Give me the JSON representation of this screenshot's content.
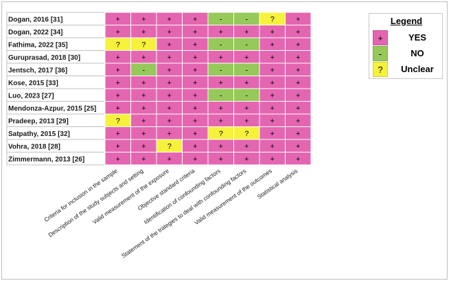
{
  "chart_data": {
    "type": "heatmap",
    "rows": [
      "Dogan, 2016 [31]",
      "Dogan, 2022 [34]",
      "Fathima, 2022 [35]",
      "Guruprasad, 2018 [30]",
      "Jentsch, 2017 [36]",
      "Kose, 2015 [33]",
      "Luo, 2023 [27]",
      "Mendonza-Azpur, 2015 [25]",
      "Pradeep, 2013 [29]",
      "Satpathy, 2015 [32]",
      "Vohra, 2018 [28]",
      "Zimmermann, 2013 [26]"
    ],
    "columns": [
      "Criteria for inclusion in the sample",
      "Description of the study subjects and setting",
      "Valid measurement of the exposure",
      "Objective standard criteria",
      "Identification of confounding factors",
      "Statement of the trategies to deal with confounding factors",
      "Valid measurement of the outcomes",
      "Statistical analysis"
    ],
    "values": [
      [
        "+",
        "+",
        "+",
        "+",
        "-",
        "-",
        "?",
        "+"
      ],
      [
        "+",
        "+",
        "+",
        "+",
        "+",
        "+",
        "+",
        "+"
      ],
      [
        "?",
        "?",
        "+",
        "+",
        "-",
        "-",
        "+",
        "+"
      ],
      [
        "+",
        "+",
        "+",
        "+",
        "+",
        "+",
        "+",
        "+"
      ],
      [
        "+",
        "-",
        "+",
        "+",
        "-",
        "-",
        "+",
        "+"
      ],
      [
        "+",
        "+",
        "+",
        "+",
        "+",
        "+",
        "+",
        "+"
      ],
      [
        "+",
        "+",
        "+",
        "+",
        "-",
        "-",
        "+",
        "+"
      ],
      [
        "+",
        "+",
        "+",
        "+",
        "+",
        "+",
        "+",
        "+"
      ],
      [
        "?",
        "+",
        "+",
        "+",
        "+",
        "+",
        "+",
        "+"
      ],
      [
        "+",
        "+",
        "+",
        "+",
        "?",
        "?",
        "+",
        "+"
      ],
      [
        "+",
        "+",
        "?",
        "+",
        "+",
        "+",
        "+",
        "+"
      ],
      [
        "+",
        "+",
        "+",
        "+",
        "+",
        "+",
        "+",
        "+"
      ]
    ],
    "colors": {
      "+": "#e466b0",
      "-": "#96c85a",
      "?": "#f6f23c"
    }
  },
  "legend": {
    "title": "Legend",
    "items": [
      {
        "symbol": "+",
        "label": "YES",
        "color": "#e466b0"
      },
      {
        "symbol": "-",
        "label": "NO",
        "color": "#96c85a"
      },
      {
        "symbol": "?",
        "label": "Unclear",
        "color": "#f6f23c"
      }
    ]
  }
}
